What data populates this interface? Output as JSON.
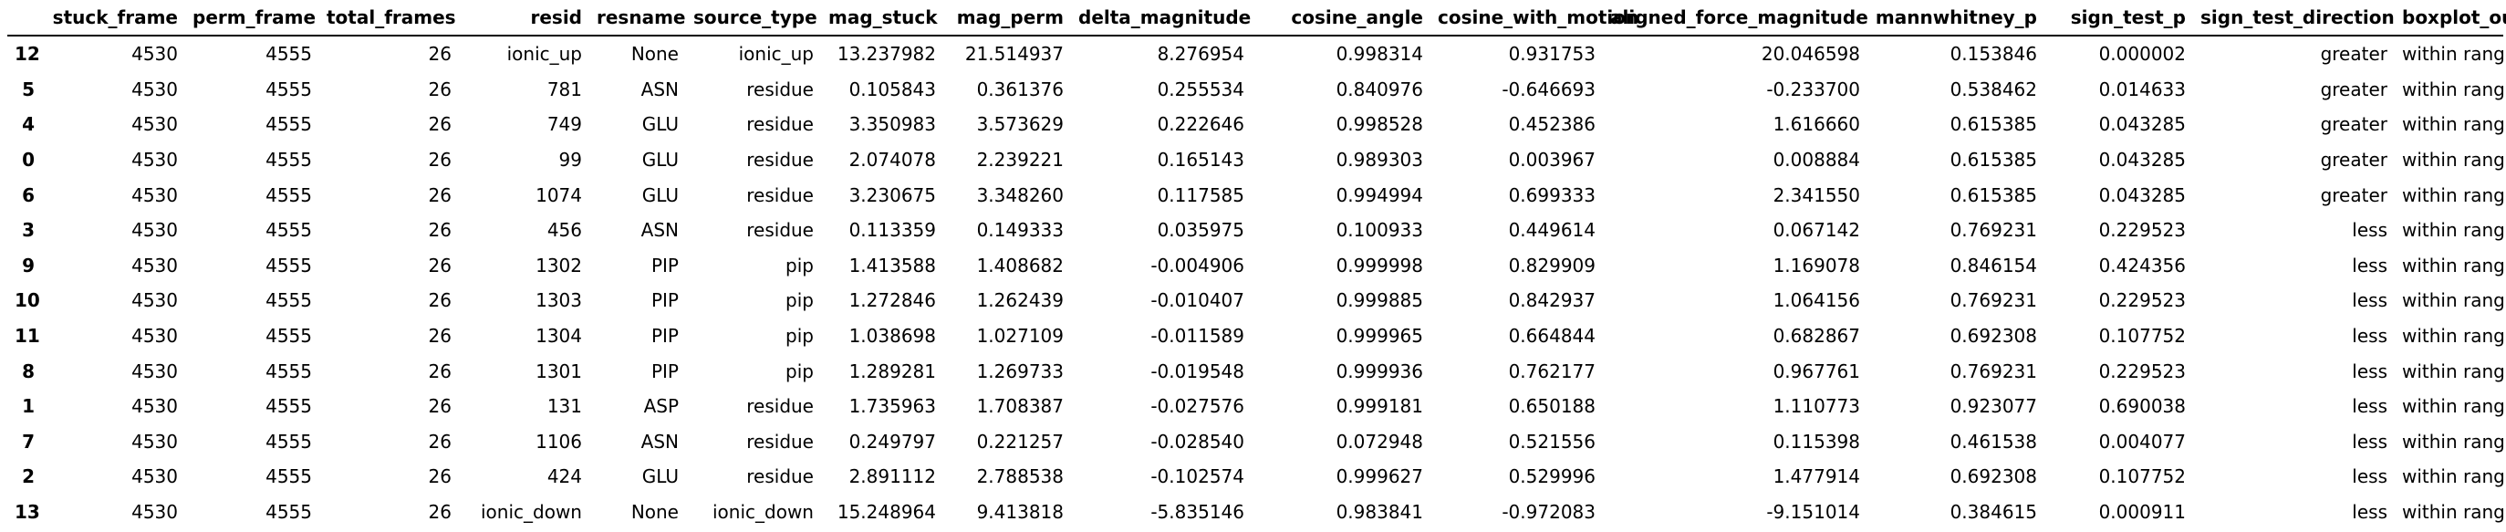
{
  "table": {
    "index_header": "",
    "columns": [
      "stuck_frame",
      "perm_frame",
      "total_frames",
      "resid",
      "resname",
      "source_type",
      "mag_stuck",
      "mag_perm",
      "delta_magnitude",
      "cosine_angle",
      "cosine_with_motion",
      "aligned_force_magnitude",
      "mannwhitney_p",
      "sign_test_p",
      "sign_test_direction",
      "boxplot_outlier"
    ],
    "rows": [
      {
        "index": "12",
        "cells": [
          "4530",
          "4555",
          "26",
          "ionic_up",
          "None",
          "ionic_up",
          "13.237982",
          "21.514937",
          "8.276954",
          "0.998314",
          "0.931753",
          "20.046598",
          "0.153846",
          "0.000002",
          "greater",
          "within range"
        ]
      },
      {
        "index": "5",
        "cells": [
          "4530",
          "4555",
          "26",
          "781",
          "ASN",
          "residue",
          "0.105843",
          "0.361376",
          "0.255534",
          "0.840976",
          "-0.646693",
          "-0.233700",
          "0.538462",
          "0.014633",
          "greater",
          "within range"
        ]
      },
      {
        "index": "4",
        "cells": [
          "4530",
          "4555",
          "26",
          "749",
          "GLU",
          "residue",
          "3.350983",
          "3.573629",
          "0.222646",
          "0.998528",
          "0.452386",
          "1.616660",
          "0.615385",
          "0.043285",
          "greater",
          "within range"
        ]
      },
      {
        "index": "0",
        "cells": [
          "4530",
          "4555",
          "26",
          "99",
          "GLU",
          "residue",
          "2.074078",
          "2.239221",
          "0.165143",
          "0.989303",
          "0.003967",
          "0.008884",
          "0.615385",
          "0.043285",
          "greater",
          "within range"
        ]
      },
      {
        "index": "6",
        "cells": [
          "4530",
          "4555",
          "26",
          "1074",
          "GLU",
          "residue",
          "3.230675",
          "3.348260",
          "0.117585",
          "0.994994",
          "0.699333",
          "2.341550",
          "0.615385",
          "0.043285",
          "greater",
          "within range"
        ]
      },
      {
        "index": "3",
        "cells": [
          "4530",
          "4555",
          "26",
          "456",
          "ASN",
          "residue",
          "0.113359",
          "0.149333",
          "0.035975",
          "0.100933",
          "0.449614",
          "0.067142",
          "0.769231",
          "0.229523",
          "less",
          "within range"
        ]
      },
      {
        "index": "9",
        "cells": [
          "4530",
          "4555",
          "26",
          "1302",
          "PIP",
          "pip",
          "1.413588",
          "1.408682",
          "-0.004906",
          "0.999998",
          "0.829909",
          "1.169078",
          "0.846154",
          "0.424356",
          "less",
          "within range"
        ]
      },
      {
        "index": "10",
        "cells": [
          "4530",
          "4555",
          "26",
          "1303",
          "PIP",
          "pip",
          "1.272846",
          "1.262439",
          "-0.010407",
          "0.999885",
          "0.842937",
          "1.064156",
          "0.769231",
          "0.229523",
          "less",
          "within range"
        ]
      },
      {
        "index": "11",
        "cells": [
          "4530",
          "4555",
          "26",
          "1304",
          "PIP",
          "pip",
          "1.038698",
          "1.027109",
          "-0.011589",
          "0.999965",
          "0.664844",
          "0.682867",
          "0.692308",
          "0.107752",
          "less",
          "within range"
        ]
      },
      {
        "index": "8",
        "cells": [
          "4530",
          "4555",
          "26",
          "1301",
          "PIP",
          "pip",
          "1.289281",
          "1.269733",
          "-0.019548",
          "0.999936",
          "0.762177",
          "0.967761",
          "0.769231",
          "0.229523",
          "less",
          "within range"
        ]
      },
      {
        "index": "1",
        "cells": [
          "4530",
          "4555",
          "26",
          "131",
          "ASP",
          "residue",
          "1.735963",
          "1.708387",
          "-0.027576",
          "0.999181",
          "0.650188",
          "1.110773",
          "0.923077",
          "0.690038",
          "less",
          "within range"
        ]
      },
      {
        "index": "7",
        "cells": [
          "4530",
          "4555",
          "26",
          "1106",
          "ASN",
          "residue",
          "0.249797",
          "0.221257",
          "-0.028540",
          "0.072948",
          "0.521556",
          "0.115398",
          "0.461538",
          "0.004077",
          "less",
          "within range"
        ]
      },
      {
        "index": "2",
        "cells": [
          "4530",
          "4555",
          "26",
          "424",
          "GLU",
          "residue",
          "2.891112",
          "2.788538",
          "-0.102574",
          "0.999627",
          "0.529996",
          "1.477914",
          "0.692308",
          "0.107752",
          "less",
          "within range"
        ]
      },
      {
        "index": "13",
        "cells": [
          "4530",
          "4555",
          "26",
          "ionic_down",
          "None",
          "ionic_down",
          "15.248964",
          "9.413818",
          "-5.835146",
          "0.983841",
          "-0.972083",
          "-9.151014",
          "0.384615",
          "0.000911",
          "less",
          "within range"
        ]
      }
    ]
  }
}
